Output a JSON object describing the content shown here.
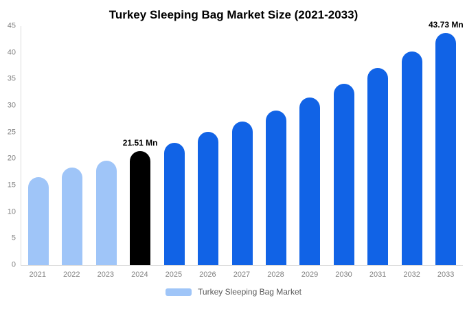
{
  "chart_data": {
    "type": "bar",
    "title": "Turkey Sleeping Bag Market Size (2021-2033)",
    "categories": [
      "2021",
      "2022",
      "2023",
      "2024",
      "2025",
      "2026",
      "2027",
      "2028",
      "2029",
      "2030",
      "2031",
      "2032",
      "2033"
    ],
    "values": [
      16.5,
      18.3,
      19.7,
      21.51,
      23.0,
      25.1,
      27.0,
      29.1,
      31.6,
      34.2,
      37.1,
      40.2,
      43.73
    ],
    "unit": "Mn",
    "xlabel": "",
    "ylabel": "",
    "ylim": [
      0,
      45
    ],
    "yticks": [
      0,
      5,
      10,
      15,
      20,
      25,
      30,
      35,
      40,
      45
    ],
    "grid": false,
    "legend": [
      "Turkey Sleeping Bag Market"
    ],
    "legend_position": "bottom",
    "annotations": [
      {
        "category": "2024",
        "text": "21.51 Mn"
      },
      {
        "category": "2033",
        "text": "43.73 Mn"
      }
    ],
    "colors": {
      "historical": "#9fc5f8",
      "highlight": "#000000",
      "forecast": "#1163e6",
      "axis_line": "#d9d9d9",
      "tick_text": "#7f7f7f"
    },
    "bar_colors": [
      "#9fc5f8",
      "#9fc5f8",
      "#9fc5f8",
      "#000000",
      "#1163e6",
      "#1163e6",
      "#1163e6",
      "#1163e6",
      "#1163e6",
      "#1163e6",
      "#1163e6",
      "#1163e6",
      "#1163e6"
    ]
  }
}
